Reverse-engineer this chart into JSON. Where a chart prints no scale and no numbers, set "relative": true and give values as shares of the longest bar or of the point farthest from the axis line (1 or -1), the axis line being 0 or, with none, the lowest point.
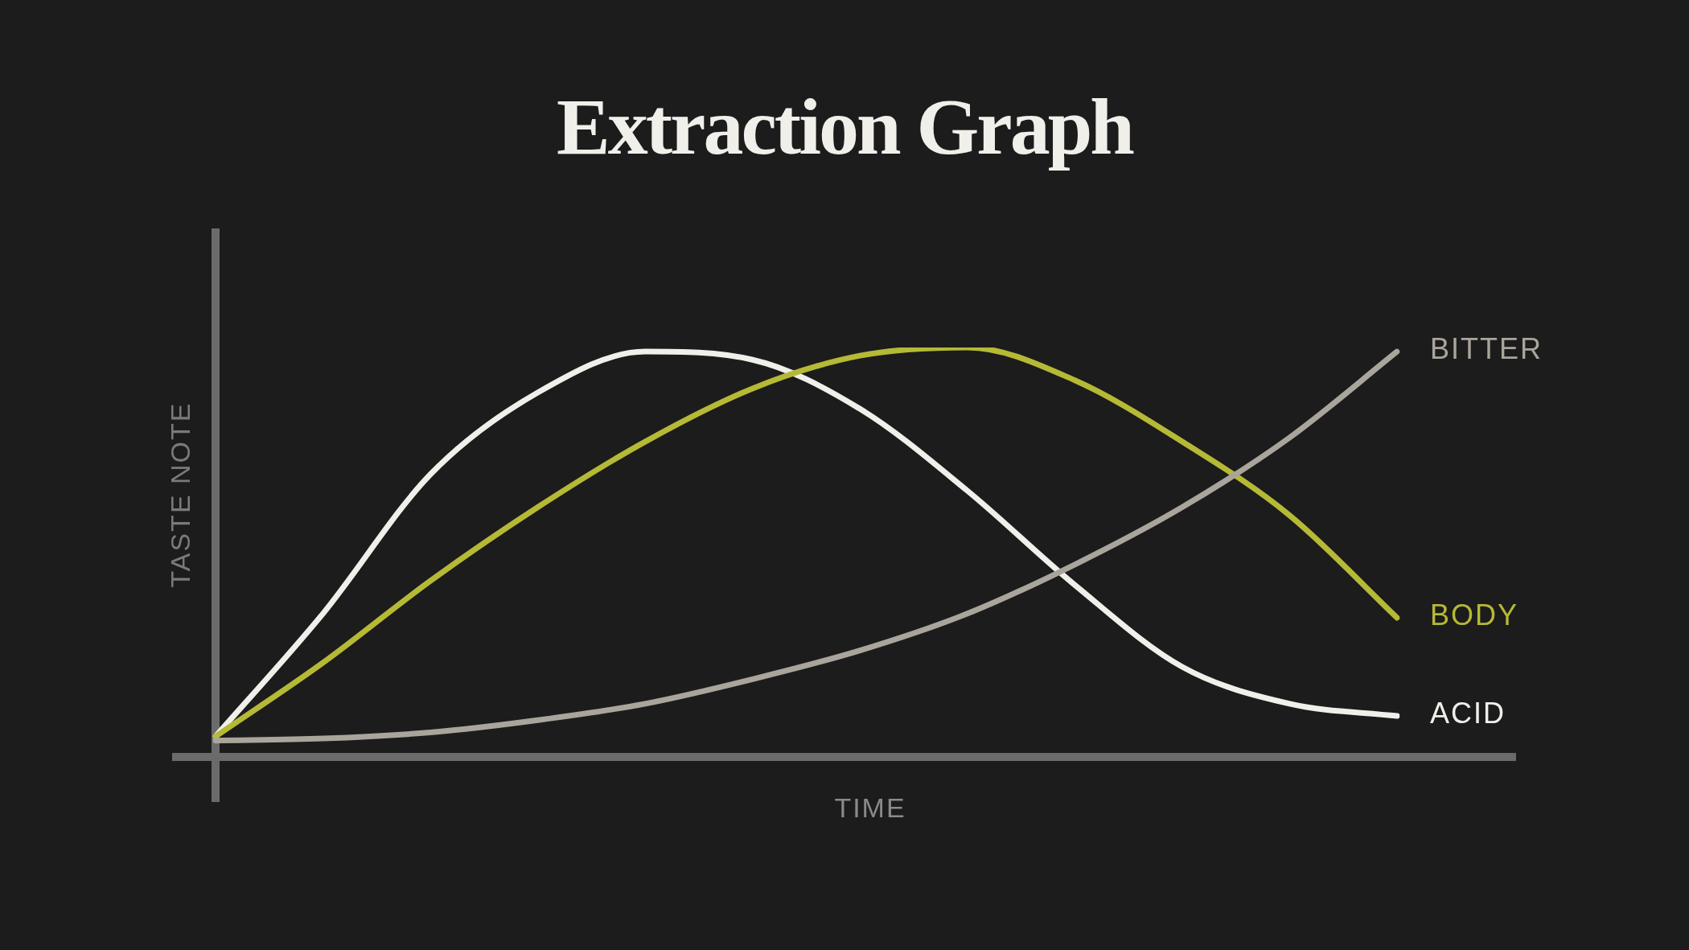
{
  "chart_data": {
    "type": "line",
    "title": "Extraction Graph",
    "xlabel": "TIME",
    "ylabel": "TASTE NOTE",
    "relative": true,
    "marker": "none",
    "categories": [
      null,
      null,
      null,
      null,
      null,
      null,
      null,
      null,
      null,
      null,
      null,
      null
    ],
    "series": [
      {
        "name": "BITTER",
        "color": "#aaa59c",
        "values": [
          0.04,
          0.045,
          0.06,
          0.09,
          0.13,
          0.19,
          0.26,
          0.35,
          0.47,
          0.61,
          0.78,
          0.99
        ]
      },
      {
        "name": "BODY",
        "color": "#b5b935",
        "values": [
          0.05,
          0.23,
          0.43,
          0.61,
          0.77,
          0.9,
          0.98,
          1,
          0.92,
          0.77,
          0.59,
          0.34
        ]
      },
      {
        "name": "ACID",
        "color": "#f0efea",
        "values": [
          0.05,
          0.35,
          0.69,
          0.89,
          0.99,
          0.97,
          0.85,
          0.65,
          0.42,
          0.22,
          0.13,
          0.1
        ]
      }
    ]
  }
}
